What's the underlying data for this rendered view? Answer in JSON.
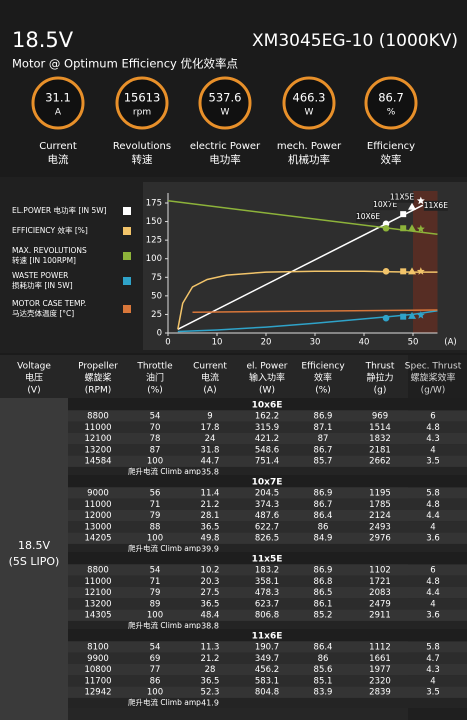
{
  "header": {
    "title": "18.5V",
    "model": "XM3045EG-10 (1000KV)",
    "subtitle": "Motor @ Optimum Efficiency  优化效率点"
  },
  "gauges": [
    {
      "value": "31.1",
      "unit": "A",
      "label": "Current",
      "label_cn": "电流"
    },
    {
      "value": "15613",
      "unit": "rpm",
      "label": "Revolutions",
      "label_cn": "转速"
    },
    {
      "value": "537.6",
      "unit": "W",
      "label": "electric Power",
      "label_cn": "电功率"
    },
    {
      "value": "466.3",
      "unit": "W",
      "label": "mech. Power",
      "label_cn": "机械功率"
    },
    {
      "value": "86.7",
      "unit": "%",
      "label": "Efficiency",
      "label_cn": "效率"
    }
  ],
  "chart_data": {
    "type": "line",
    "xlabel": "(A)",
    "xlim": [
      0,
      55
    ],
    "xticks": [
      0,
      10,
      20,
      30,
      40,
      50
    ],
    "ylim": [
      0,
      175
    ],
    "yticks": [
      0,
      25,
      50,
      75,
      100,
      125,
      150,
      175
    ],
    "limit_x": 50,
    "series": [
      {
        "name": "EL.POWER 电功率 [IN 5W]",
        "color": "#ffffff",
        "x": [
          2,
          52
        ],
        "values": [
          5,
          172
        ]
      },
      {
        "name": "EFFICIENCY 效率 [%]",
        "color": "#f2c46a",
        "x": [
          2,
          3,
          5,
          8,
          12,
          20,
          30,
          40,
          50,
          55
        ],
        "values": [
          5,
          40,
          62,
          72,
          78,
          82,
          83,
          83,
          82,
          82
        ]
      },
      {
        "name": "MAX. REVOLUTIONS",
        "name2": "转速 [IN 100RPM]",
        "color": "#8db33a",
        "x": [
          0,
          55
        ],
        "values": [
          178,
          133
        ]
      },
      {
        "name": "WASTE POWER",
        "name2": "损耗功率 [IN 5W]",
        "color": "#2fa3c9",
        "x": [
          2,
          10,
          20,
          30,
          40,
          50,
          55
        ],
        "values": [
          2,
          4,
          8,
          13,
          19,
          25,
          30
        ]
      },
      {
        "name": "MOTOR CASE TEMP.",
        "name2": "马达壳体温度 [°C]",
        "color": "#d9773a",
        "x": [
          5,
          55
        ],
        "values": [
          28,
          31
        ]
      }
    ],
    "markers": [
      {
        "label": "10X6E",
        "shape": "circle",
        "x": 44.5,
        "values": [
          147,
          83,
          141,
          20
        ]
      },
      {
        "label": "10X7E",
        "shape": "square",
        "x": 48,
        "values": [
          160,
          83,
          141,
          22
        ]
      },
      {
        "label": "11X5E",
        "shape": "triangle",
        "x": 49.8,
        "values": [
          170,
          83,
          141,
          23
        ]
      },
      {
        "label": "11X6E",
        "shape": "star",
        "x": 51.6,
        "values": [
          178,
          83,
          140,
          24
        ]
      }
    ]
  },
  "table": {
    "columns": [
      [
        "Voltage",
        "电压",
        "(V)"
      ],
      [
        "Propeller",
        "螺旋桨",
        "(RPM)"
      ],
      [
        "Throttle",
        "油门",
        "(%)"
      ],
      [
        "Current",
        "电流",
        "(A)"
      ],
      [
        "el. Power",
        "输入功率",
        "(W)"
      ],
      [
        "Efficiency",
        "效率",
        "(%)"
      ],
      [
        "Thrust",
        "静拉力",
        "(g)"
      ],
      [
        "Spec. Thrust",
        "螺旋桨效率",
        "(g/W)"
      ]
    ],
    "voltage": [
      "18.5V",
      "(5S LIPO)"
    ],
    "climb_label": "爬升电流 Climb amp",
    "groups": [
      {
        "name": "10x6E",
        "rows": [
          [
            "8800",
            "54",
            "9",
            "162.2",
            "86.9",
            "969",
            "6"
          ],
          [
            "11000",
            "70",
            "17.8",
            "315.9",
            "87.1",
            "1514",
            "4.8"
          ],
          [
            "12100",
            "78",
            "24",
            "421.2",
            "87",
            "1832",
            "4.3"
          ],
          [
            "13200",
            "87",
            "31.8",
            "548.6",
            "86.7",
            "2181",
            "4"
          ],
          [
            "14584",
            "100",
            "44.7",
            "751.4",
            "85.7",
            "2662",
            "3.5"
          ]
        ],
        "climb": "35.8"
      },
      {
        "name": "10x7E",
        "rows": [
          [
            "9000",
            "56",
            "11.4",
            "204.5",
            "86.9",
            "1195",
            "5.8"
          ],
          [
            "11000",
            "71",
            "21.2",
            "374.3",
            "86.7",
            "1785",
            "4.8"
          ],
          [
            "12000",
            "79",
            "28.1",
            "487.6",
            "86.4",
            "2124",
            "4.4"
          ],
          [
            "13000",
            "88",
            "36.5",
            "622.7",
            "86",
            "2493",
            "4"
          ],
          [
            "14205",
            "100",
            "49.8",
            "826.5",
            "84.9",
            "2976",
            "3.6"
          ]
        ],
        "climb": "39.9"
      },
      {
        "name": "11x5E",
        "rows": [
          [
            "8800",
            "54",
            "10.2",
            "183.2",
            "86.9",
            "1102",
            "6"
          ],
          [
            "11000",
            "71",
            "20.3",
            "358.1",
            "86.8",
            "1721",
            "4.8"
          ],
          [
            "12100",
            "79",
            "27.5",
            "478.3",
            "86.5",
            "2083",
            "4.4"
          ],
          [
            "13200",
            "89",
            "36.5",
            "623.7",
            "86.1",
            "2479",
            "4"
          ],
          [
            "14305",
            "100",
            "48.4",
            "806.8",
            "85.2",
            "2911",
            "3.6"
          ]
        ],
        "climb": "38.8"
      },
      {
        "name": "11x6E",
        "rows": [
          [
            "8100",
            "54",
            "11.3",
            "190.7",
            "86.4",
            "1112",
            "5.8"
          ],
          [
            "9900",
            "69",
            "21.2",
            "349.7",
            "86",
            "1661",
            "4.7"
          ],
          [
            "10800",
            "77",
            "28",
            "456.2",
            "85.6",
            "1977",
            "4.3"
          ],
          [
            "11700",
            "86",
            "36.5",
            "583.1",
            "85.1",
            "2320",
            "4"
          ],
          [
            "12942",
            "100",
            "52.3",
            "804.8",
            "83.9",
            "2839",
            "3.5"
          ]
        ],
        "climb": "41.9"
      }
    ]
  }
}
